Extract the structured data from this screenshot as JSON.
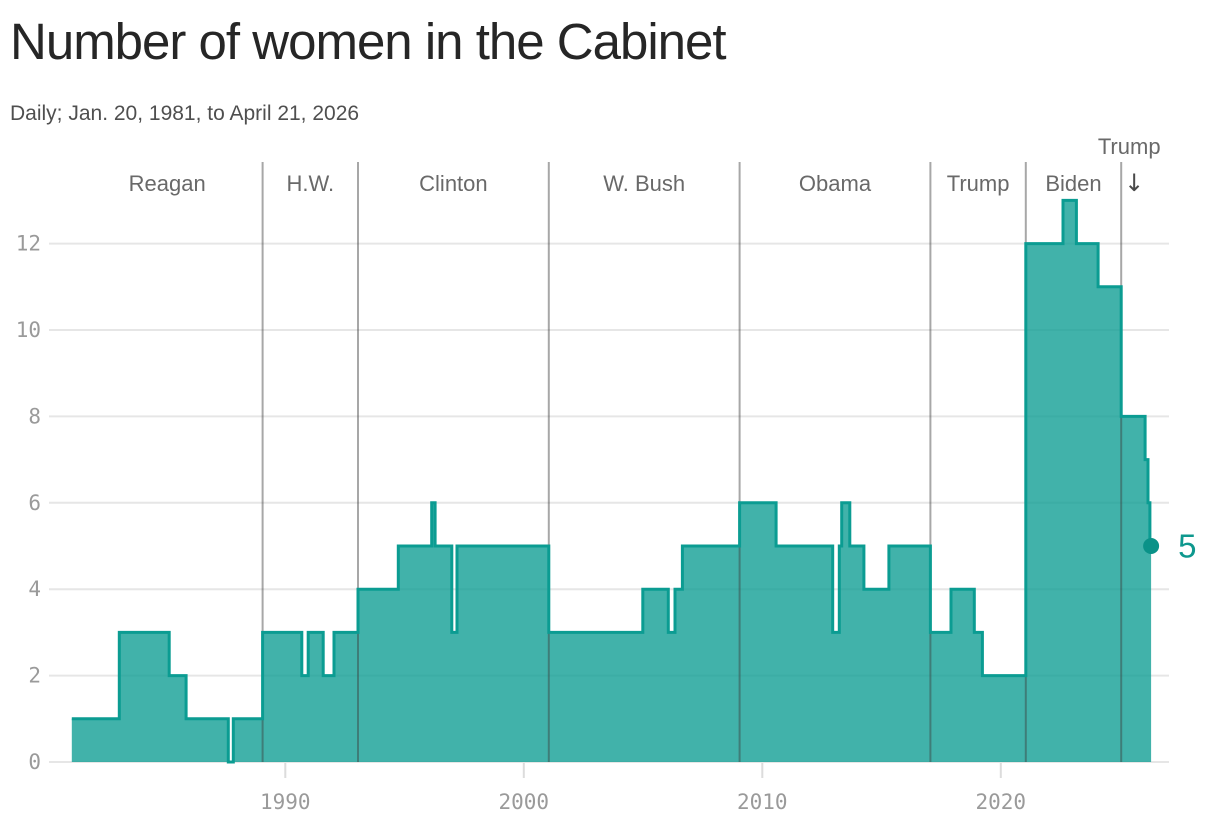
{
  "header": {
    "title": "Number of women in the Cabinet",
    "subtitle": "Daily; Jan. 20, 1981, to April 21, 2026"
  },
  "chart_data": {
    "type": "area",
    "title": "Number of women in the Cabinet",
    "subtitle": "Daily; Jan. 20, 1981, to April 21, 2026",
    "x_range": [
      1981.05,
      2026.3
    ],
    "ylim": [
      0,
      13
    ],
    "yticks": [
      0,
      2,
      4,
      6,
      8,
      10,
      12
    ],
    "xticks": [
      {
        "year": 1990,
        "label": "1990"
      },
      {
        "year": 2000,
        "label": "2000"
      },
      {
        "year": 2010,
        "label": "2010"
      },
      {
        "year": 2020,
        "label": "2020"
      }
    ],
    "grid": true,
    "legend": "none",
    "eras": [
      {
        "label": "Reagan",
        "start": 1981.05,
        "end": 1989.05
      },
      {
        "label": "H.W.",
        "start": 1989.05,
        "end": 1993.05
      },
      {
        "label": "Clinton",
        "start": 1993.05,
        "end": 2001.05
      },
      {
        "label": "W. Bush",
        "start": 2001.05,
        "end": 2009.05
      },
      {
        "label": "Obama",
        "start": 2009.05,
        "end": 2017.05
      },
      {
        "label": "Trump",
        "start": 2017.05,
        "end": 2021.05
      },
      {
        "label": "Biden",
        "start": 2021.05,
        "end": 2025.05
      },
      {
        "label": "Trump",
        "start": 2025.05,
        "end": 2026.3,
        "label_above": true,
        "arrow": "↓"
      }
    ],
    "step_series": [
      [
        1981.05,
        1
      ],
      [
        1983.04,
        3
      ],
      [
        1985.13,
        2
      ],
      [
        1985.84,
        1
      ],
      [
        1987.61,
        0
      ],
      [
        1987.82,
        1
      ],
      [
        1989.05,
        3
      ],
      [
        1990.69,
        2
      ],
      [
        1990.96,
        3
      ],
      [
        1991.59,
        2
      ],
      [
        1992.04,
        3
      ],
      [
        1993.05,
        4
      ],
      [
        1994.74,
        5
      ],
      [
        1996.14,
        6
      ],
      [
        1996.28,
        5
      ],
      [
        1996.98,
        3
      ],
      [
        1997.2,
        5
      ],
      [
        2001.05,
        3
      ],
      [
        2004.99,
        4
      ],
      [
        2006.06,
        3
      ],
      [
        2006.34,
        4
      ],
      [
        2006.65,
        5
      ],
      [
        2009.05,
        6
      ],
      [
        2010.58,
        5
      ],
      [
        2012.95,
        3
      ],
      [
        2013.23,
        5
      ],
      [
        2013.33,
        6
      ],
      [
        2013.67,
        5
      ],
      [
        2014.26,
        4
      ],
      [
        2015.31,
        5
      ],
      [
        2017.05,
        3
      ],
      [
        2017.91,
        4
      ],
      [
        2018.89,
        3
      ],
      [
        2019.23,
        2
      ],
      [
        2021.05,
        12
      ],
      [
        2022.61,
        13
      ],
      [
        2023.17,
        12
      ],
      [
        2024.08,
        11
      ],
      [
        2025.05,
        8
      ],
      [
        2026.05,
        7
      ],
      [
        2026.17,
        6
      ],
      [
        2026.25,
        5
      ]
    ],
    "end_point": {
      "year": 2026.3,
      "value": 5,
      "label": "5"
    },
    "colors": {
      "area_fill": "#0B9C92",
      "area_fill_opacity": 0.78,
      "line": "#0B9C92",
      "dot": "#0A9288",
      "annotation": "#0E988E",
      "grid": "#e6e6e6",
      "era_line": "rgba(60,60,60,0.45)",
      "tick": "#dcdcdc",
      "axis_label": "#9a9a9a",
      "era_label": "#696969",
      "arrow": "#4a4a4a"
    }
  }
}
